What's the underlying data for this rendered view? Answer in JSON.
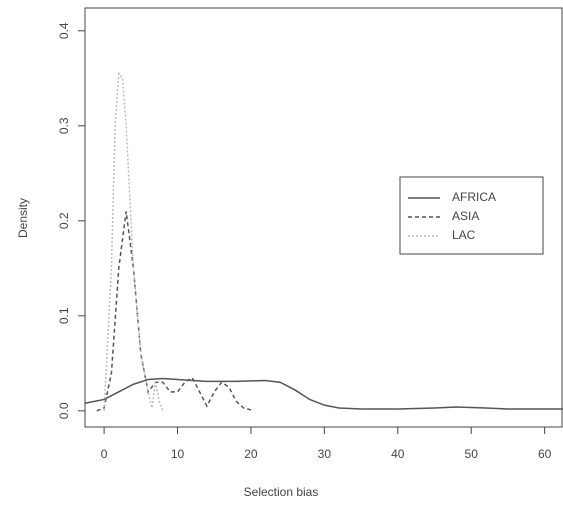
{
  "chart_data": {
    "type": "line",
    "xlabel": "Selection bias",
    "ylabel": "Density",
    "xlim": [
      -2.6,
      62.5
    ],
    "ylim": [
      -0.017,
      0.424
    ],
    "xticks": [
      0,
      10,
      20,
      30,
      40,
      50,
      60
    ],
    "yticks": [
      {
        "value": 0,
        "label": "0.0"
      },
      0.1,
      0.2,
      0.3,
      0.4
    ],
    "series": [
      {
        "name": "AFRICA",
        "color": "#555555",
        "dash": "none",
        "x": [
          -2.6,
          0,
          2,
          4,
          6,
          8,
          10,
          14,
          18,
          22,
          24,
          26,
          28,
          30,
          32,
          35,
          40,
          45,
          48,
          52,
          55,
          62.5
        ],
        "values": [
          0.008,
          0.012,
          0.02,
          0.028,
          0.033,
          0.034,
          0.033,
          0.031,
          0.031,
          0.032,
          0.03,
          0.022,
          0.012,
          0.006,
          0.003,
          0.002,
          0.002,
          0.003,
          0.004,
          0.003,
          0.002,
          0.002
        ]
      },
      {
        "name": "ASIA",
        "color": "#555555",
        "dash": "4 3",
        "x": [
          -1,
          0,
          1,
          2,
          3,
          4,
          5,
          6,
          7,
          8,
          9,
          10,
          11,
          12,
          13,
          14,
          15,
          16,
          17,
          18,
          19,
          20
        ],
        "values": [
          0,
          0.003,
          0.04,
          0.15,
          0.21,
          0.15,
          0.06,
          0.02,
          0.03,
          0.03,
          0.02,
          0.02,
          0.03,
          0.035,
          0.02,
          0.005,
          0.02,
          0.03,
          0.025,
          0.01,
          0.003,
          0.001
        ]
      },
      {
        "name": "LAC",
        "color": "#bbbbbb",
        "dash": "2 2",
        "x": [
          0,
          1,
          1.5,
          2,
          2.5,
          3,
          4,
          5,
          6,
          6.5,
          7,
          7.5,
          8
        ],
        "values": [
          0,
          0.15,
          0.3,
          0.355,
          0.35,
          0.3,
          0.15,
          0.06,
          0.02,
          0.003,
          0.03,
          0.01,
          0
        ]
      }
    ]
  }
}
